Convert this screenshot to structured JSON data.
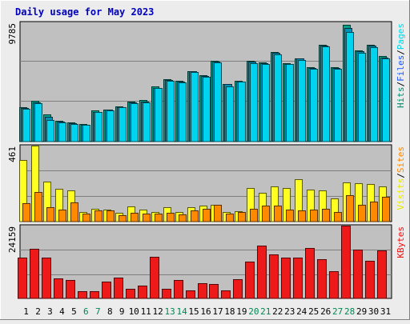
{
  "chart_data": {
    "type": "bar",
    "title": "Daily usage for May 2023",
    "categories": [
      "1",
      "2",
      "3",
      "4",
      "5",
      "6",
      "7",
      "8",
      "9",
      "10",
      "11",
      "12",
      "13",
      "14",
      "15",
      "16",
      "17",
      "18",
      "19",
      "20",
      "21",
      "22",
      "23",
      "24",
      "25",
      "26",
      "27",
      "28",
      "29",
      "30",
      "31"
    ],
    "weekend_days": [
      "6",
      "7",
      "13",
      "14",
      "20",
      "21",
      "27",
      "28"
    ],
    "panels": [
      {
        "name": "top",
        "ymax_label": "9785",
        "ymax": 9785,
        "right_labels": [
          "Pages",
          "Files",
          "Hits"
        ],
        "right_label_colors": [
          "#00d8e8",
          "#1c54ff",
          "#008c6c"
        ],
        "series": [
          {
            "name": "Hits",
            "color": "#00a38a",
            "values": [
              2800,
              3350,
              2200,
              1700,
              1550,
              1450,
              2550,
              2650,
              2900,
              3300,
              3400,
              4500,
              5100,
              5000,
              5800,
              5450,
              6600,
              4750,
              5000,
              6600,
              6500,
              7350,
              6450,
              6850,
              6100,
              7950,
              6100,
              9600,
              7500,
              7950,
              7000
            ]
          },
          {
            "name": "Files",
            "color": "#008fb5",
            "values": [
              2750,
              3250,
              2050,
              1650,
              1500,
              1400,
              2450,
              2600,
              2850,
              3200,
              3300,
              4400,
              5050,
              4900,
              5750,
              5400,
              6550,
              4700,
              4950,
              6550,
              6450,
              7300,
              6400,
              6800,
              6050,
              7850,
              6050,
              9300,
              7400,
              7850,
              6900
            ]
          },
          {
            "name": "Pages",
            "color": "#00d3ee",
            "values": [
              2700,
              3150,
              1800,
              1600,
              1450,
              1350,
              2400,
              2550,
              2800,
              3150,
              3250,
              4400,
              5000,
              4850,
              5700,
              5300,
              6500,
              4500,
              4900,
              6450,
              6400,
              7150,
              6350,
              6700,
              5950,
              7800,
              6000,
              9000,
              7300,
              7750,
              6850
            ]
          }
        ]
      },
      {
        "name": "middle",
        "ymax_label": "461",
        "ymax": 461,
        "right_labels": [
          "Sites",
          "Visits"
        ],
        "right_label_colors": [
          "#ff8800",
          "#e8e800"
        ],
        "series": [
          {
            "name": "Visits",
            "color": "#ffff22",
            "values": [
              375,
              461,
              245,
              200,
              190,
              60,
              80,
              75,
              55,
              90,
              75,
              60,
              85,
              60,
              85,
              95,
              100,
              60,
              65,
              205,
              175,
              215,
              205,
              255,
              195,
              190,
              140,
              240,
              235,
              230,
              215
            ]
          },
          {
            "name": "Sites",
            "color": "#ff8a00",
            "values": [
              110,
              180,
              85,
              75,
              115,
              50,
              70,
              70,
              40,
              55,
              50,
              50,
              55,
              45,
              70,
              80,
              100,
              50,
              60,
              80,
              95,
              95,
              75,
              70,
              75,
              80,
              60,
              160,
              100,
              120,
              150
            ]
          }
        ]
      },
      {
        "name": "bottom",
        "ymax_label": "24159",
        "ymax": 24159,
        "right_labels": [
          "KBytes"
        ],
        "right_label_colors": [
          "#ee1111"
        ],
        "series": [
          {
            "name": "KBytes",
            "color": "#ee1a1a",
            "values": [
              13500,
              16500,
              13500,
              6600,
              6000,
              2300,
              2300,
              5700,
              6900,
              3200,
              4300,
              13800,
              3300,
              6000,
              2700,
              5100,
              4900,
              2600,
              6300,
              12300,
              17600,
              14600,
              13600,
              13600,
              16600,
              12900,
              9000,
              24159,
              16300,
              12500,
              15800
            ]
          }
        ]
      }
    ]
  }
}
